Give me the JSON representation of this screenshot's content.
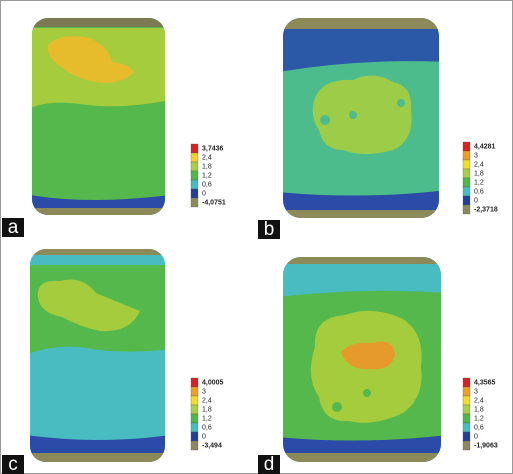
{
  "panels": [
    {
      "label": "a",
      "legend": [
        "3,7436",
        "2,4",
        "1,8",
        "1,2",
        "0,6",
        "0",
        "-4,0751"
      ]
    },
    {
      "label": "b",
      "legend": [
        "4,4281",
        "3",
        "2,4",
        "1,8",
        "1,2",
        "0,6",
        "0",
        "-2,3718"
      ]
    },
    {
      "label": "c",
      "legend": [
        "4,0005",
        "3",
        "2,4",
        "1,8",
        "1,2",
        "0,6",
        "0",
        "-3,494"
      ]
    },
    {
      "label": "d",
      "legend": [
        "4,3565",
        "3",
        "2,4",
        "1,8",
        "1,2",
        "0,6",
        "0",
        "-1,9063"
      ]
    }
  ]
}
